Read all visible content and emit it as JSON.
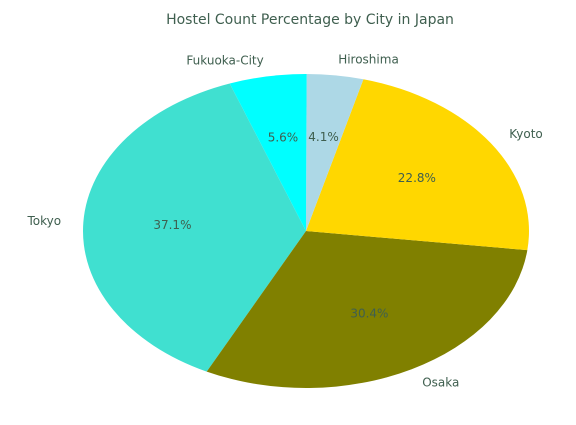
{
  "chart_data": {
    "type": "pie",
    "title": "Hostel Count Percentage by City in Japan",
    "categories": [
      "Tokyo",
      "Osaka",
      "Kyoto",
      "Hiroshima",
      "Fukuoka-City"
    ],
    "values": [
      37.1,
      30.4,
      22.8,
      4.1,
      5.6
    ],
    "value_labels": [
      "37.1%",
      "30.4%",
      "22.8%",
      "4.1%",
      "5.6%"
    ],
    "colors": [
      "#40e0d0",
      "#808000",
      "#ffd700",
      "#add8e6",
      "#00ffff"
    ],
    "start_angle_deg": 110,
    "direction": "counterclockwise"
  }
}
